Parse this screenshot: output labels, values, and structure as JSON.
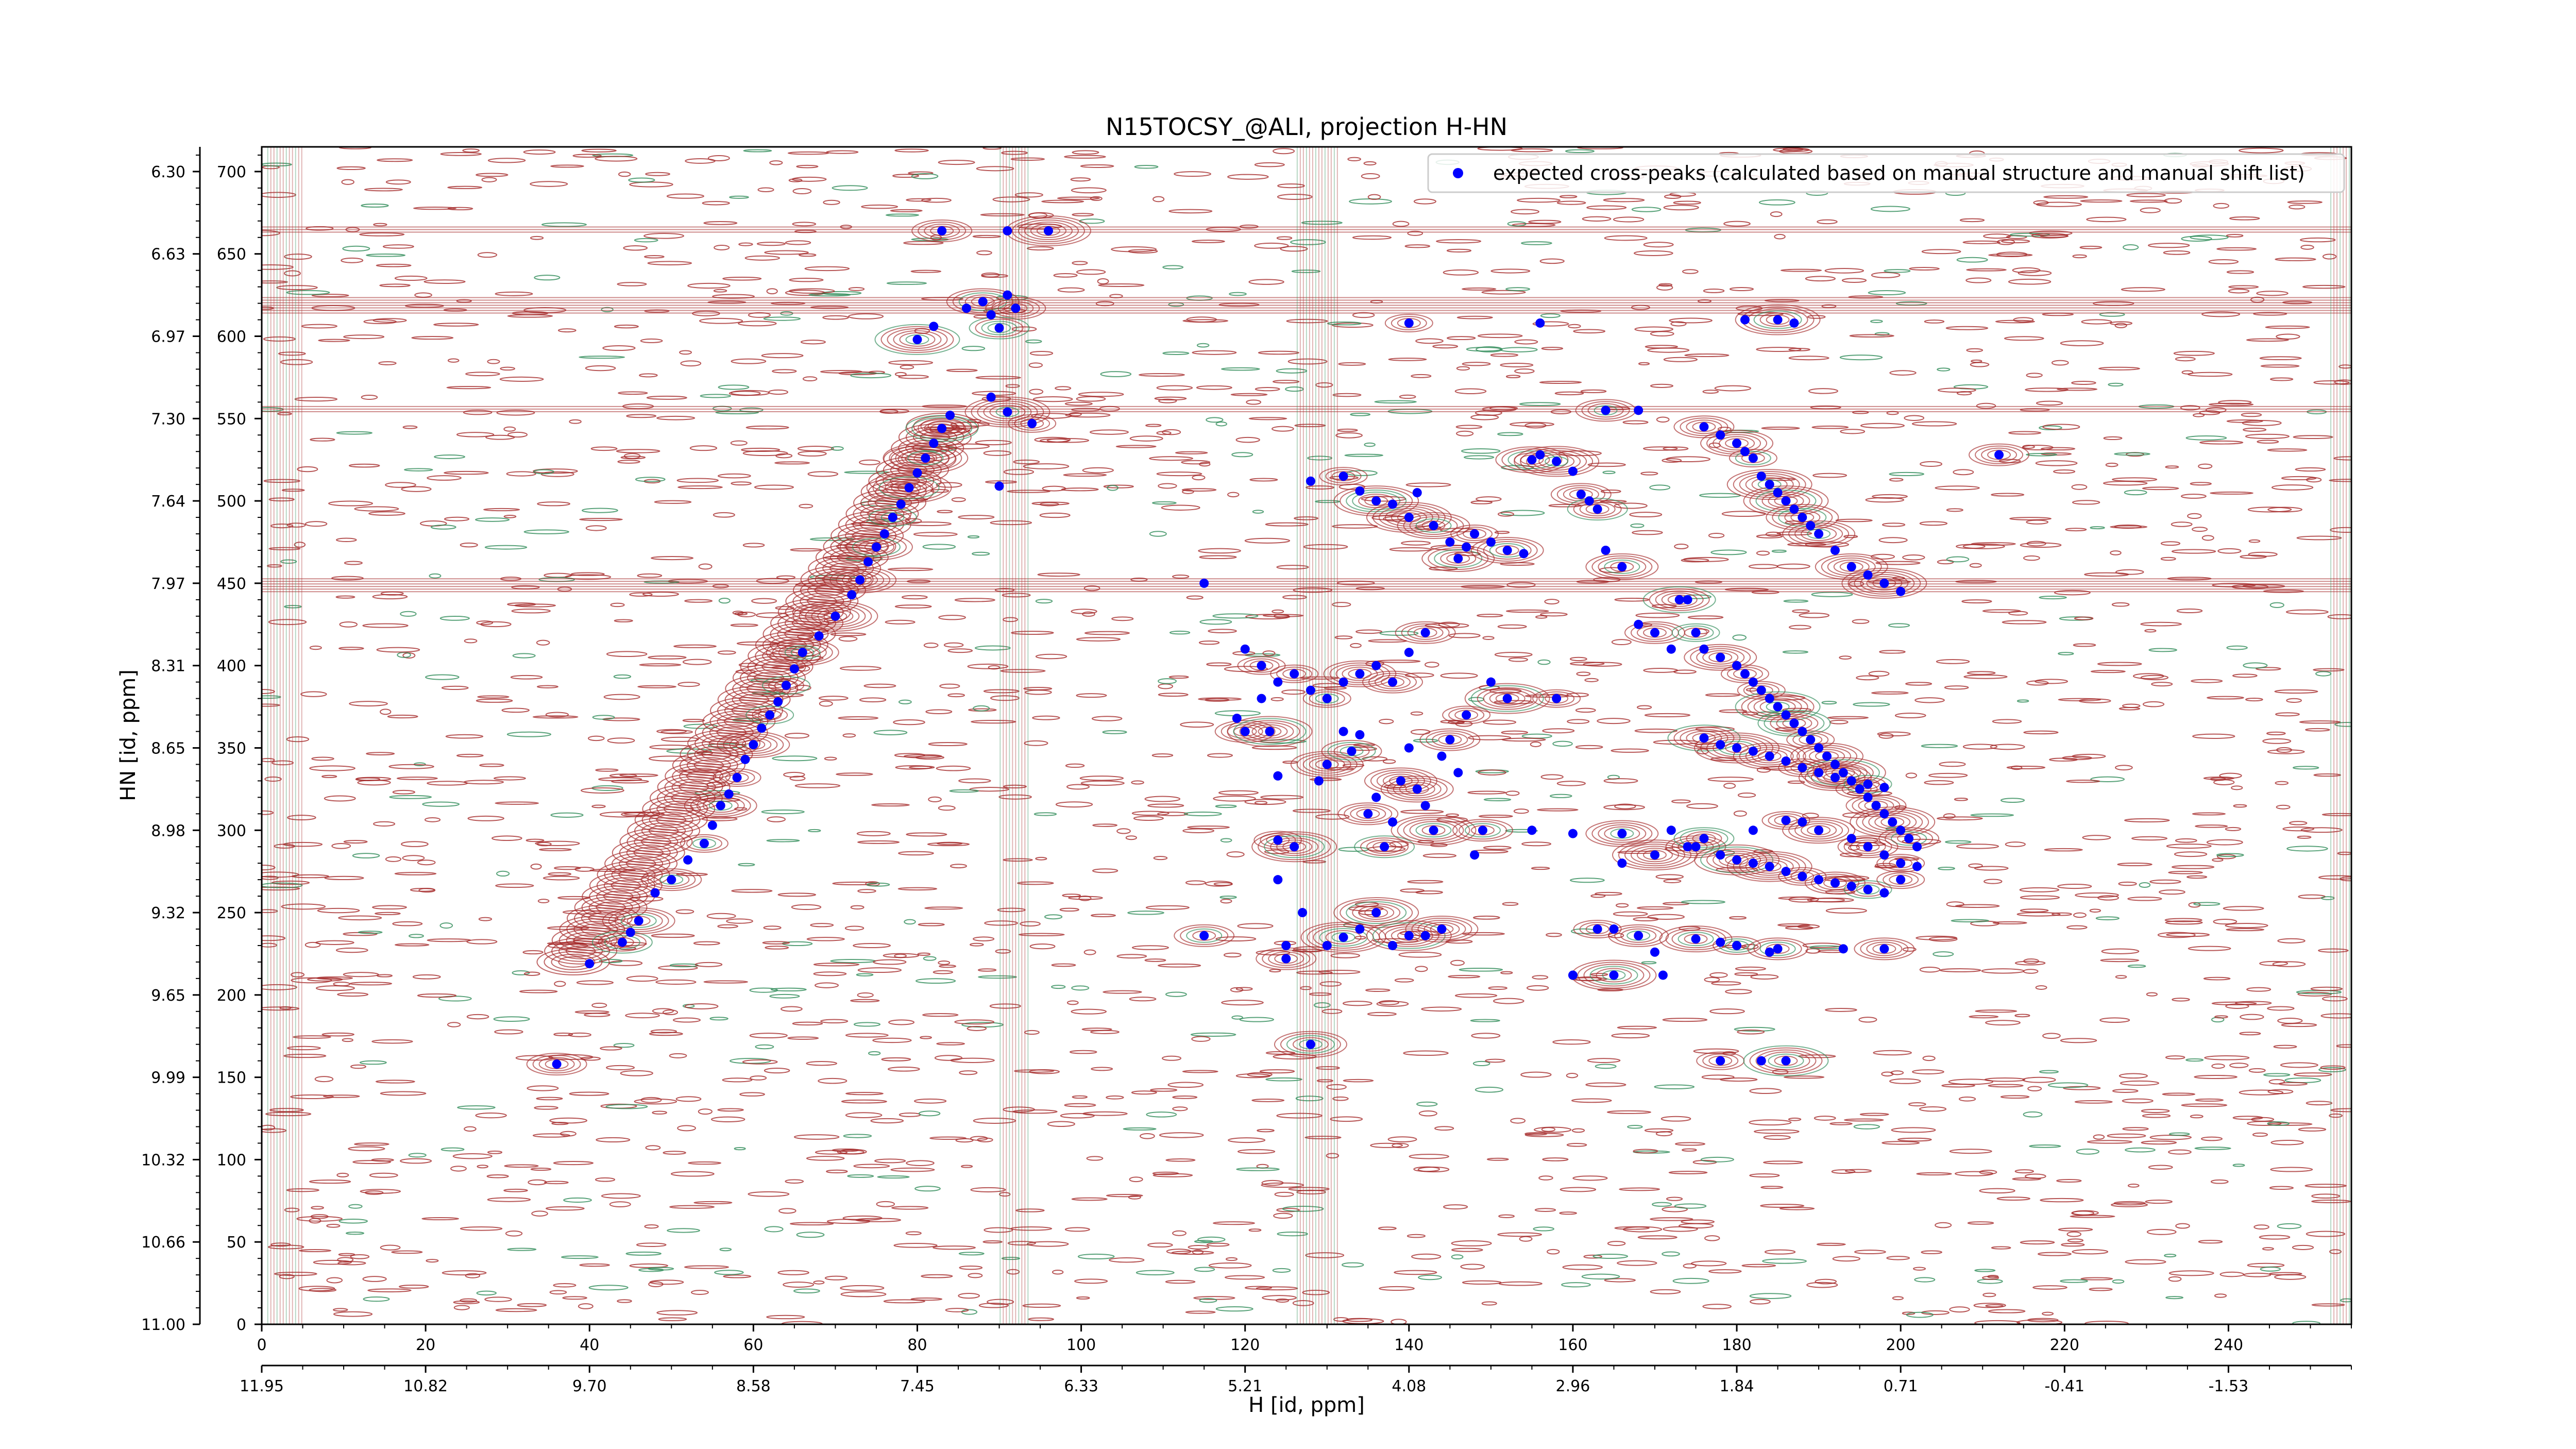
{
  "chart_data": {
    "type": "scatter",
    "title": "N15TOCSY_@ALI, projection H-HN",
    "xlabel": "H [id, ppm]",
    "ylabel": "HN [id, ppm]",
    "xlim": [
      0,
      255
    ],
    "ylim": [
      0,
      715
    ],
    "x_ticks_top": [
      0,
      20,
      40,
      60,
      80,
      100,
      120,
      140,
      160,
      180,
      200,
      220,
      240
    ],
    "x_ticks_bottom": [
      "11.95",
      "10.82",
      "9.70",
      "8.58",
      "7.45",
      "6.33",
      "5.21",
      "4.08",
      "2.96",
      "1.84",
      "0.71",
      "-0.41",
      "-1.53"
    ],
    "y_ticks_left": [
      "11.00",
      "10.66",
      "10.32",
      "9.99",
      "9.65",
      "9.32",
      "8.98",
      "8.65",
      "8.31",
      "7.97",
      "7.64",
      "7.30",
      "6.97",
      "6.63",
      "6.30"
    ],
    "y_ticks_right": [
      0,
      50,
      100,
      150,
      200,
      250,
      300,
      350,
      400,
      450,
      500,
      550,
      600,
      650,
      700
    ],
    "legend": {
      "label": "expected cross-peaks (calculated based on manual structure and manual shift list)",
      "placement": "top-right",
      "marker_color": "#0000ff"
    },
    "colors": {
      "positive_contours": "#a52a2a",
      "negative_contours": "#2e8b57",
      "markers": "#0000ff"
    },
    "series": [
      {
        "name": "expected cross-peaks (calculated based on manual structure and manual shift list)",
        "points": [
          [
            36,
            158
          ],
          [
            40,
            219
          ],
          [
            44,
            232
          ],
          [
            45,
            238
          ],
          [
            46,
            245
          ],
          [
            48,
            262
          ],
          [
            50,
            270
          ],
          [
            52,
            282
          ],
          [
            54,
            292
          ],
          [
            55,
            303
          ],
          [
            56,
            315
          ],
          [
            57,
            322
          ],
          [
            58,
            332
          ],
          [
            59,
            343
          ],
          [
            60,
            352
          ],
          [
            61,
            362
          ],
          [
            62,
            370
          ],
          [
            63,
            378
          ],
          [
            64,
            388
          ],
          [
            65,
            398
          ],
          [
            66,
            408
          ],
          [
            68,
            418
          ],
          [
            70,
            430
          ],
          [
            72,
            443
          ],
          [
            73,
            452
          ],
          [
            74,
            463
          ],
          [
            75,
            472
          ],
          [
            76,
            480
          ],
          [
            77,
            490
          ],
          [
            78,
            498
          ],
          [
            79,
            508
          ],
          [
            80,
            517
          ],
          [
            81,
            526
          ],
          [
            82,
            535
          ],
          [
            83,
            544
          ],
          [
            84,
            552
          ],
          [
            80,
            598
          ],
          [
            82,
            606
          ],
          [
            83,
            664
          ],
          [
            91,
            664
          ],
          [
            96,
            664
          ],
          [
            86,
            617
          ],
          [
            88,
            621
          ],
          [
            89,
            613
          ],
          [
            90,
            605
          ],
          [
            91,
            625
          ],
          [
            92,
            617
          ],
          [
            89,
            563
          ],
          [
            91,
            554
          ],
          [
            90,
            509
          ],
          [
            94,
            547
          ],
          [
            115,
            450
          ],
          [
            115,
            236
          ],
          [
            119,
            368
          ],
          [
            120,
            360
          ],
          [
            122,
            380
          ],
          [
            123,
            360
          ],
          [
            124,
            270
          ],
          [
            124,
            294
          ],
          [
            124,
            333
          ],
          [
            125,
            222
          ],
          [
            125,
            230
          ],
          [
            126,
            290
          ],
          [
            127,
            250
          ],
          [
            128,
            170
          ],
          [
            129,
            330
          ],
          [
            130,
            340
          ],
          [
            132,
            360
          ],
          [
            133,
            348
          ],
          [
            134,
            358
          ],
          [
            135,
            310
          ],
          [
            136,
            320
          ],
          [
            137,
            290
          ],
          [
            138,
            305
          ],
          [
            139,
            330
          ],
          [
            140,
            350
          ],
          [
            141,
            325
          ],
          [
            142,
            315
          ],
          [
            143,
            300
          ],
          [
            144,
            345
          ],
          [
            145,
            355
          ],
          [
            146,
            335
          ],
          [
            147,
            370
          ],
          [
            148,
            285
          ],
          [
            149,
            300
          ],
          [
            150,
            390
          ],
          [
            152,
            380
          ],
          [
            155,
            300
          ],
          [
            158,
            380
          ],
          [
            120,
            410
          ],
          [
            122,
            400
          ],
          [
            124,
            390
          ],
          [
            126,
            395
          ],
          [
            128,
            385
          ],
          [
            130,
            380
          ],
          [
            132,
            390
          ],
          [
            134,
            395
          ],
          [
            136,
            400
          ],
          [
            138,
            390
          ],
          [
            140,
            408
          ],
          [
            142,
            420
          ],
          [
            130,
            230
          ],
          [
            132,
            235
          ],
          [
            134,
            240
          ],
          [
            136,
            250
          ],
          [
            138,
            230
          ],
          [
            140,
            236
          ],
          [
            142,
            236
          ],
          [
            144,
            240
          ],
          [
            128,
            512
          ],
          [
            132,
            515
          ],
          [
            134,
            506
          ],
          [
            136,
            500
          ],
          [
            138,
            498
          ],
          [
            140,
            490
          ],
          [
            141,
            505
          ],
          [
            143,
            485
          ],
          [
            145,
            475
          ],
          [
            146,
            465
          ],
          [
            147,
            472
          ],
          [
            148,
            480
          ],
          [
            150,
            475
          ],
          [
            152,
            470
          ],
          [
            154,
            468
          ],
          [
            155,
            525
          ],
          [
            156,
            528
          ],
          [
            158,
            524
          ],
          [
            160,
            518
          ],
          [
            161,
            504
          ],
          [
            162,
            500
          ],
          [
            163,
            495
          ],
          [
            164,
            470
          ],
          [
            166,
            460
          ],
          [
            168,
            425
          ],
          [
            170,
            420
          ],
          [
            172,
            410
          ],
          [
            173,
            440
          ],
          [
            174,
            440
          ],
          [
            175,
            420
          ],
          [
            176,
            410
          ],
          [
            178,
            405
          ],
          [
            180,
            400
          ],
          [
            181,
            395
          ],
          [
            182,
            390
          ],
          [
            183,
            385
          ],
          [
            184,
            380
          ],
          [
            185,
            375
          ],
          [
            186,
            370
          ],
          [
            187,
            365
          ],
          [
            188,
            360
          ],
          [
            189,
            355
          ],
          [
            190,
            350
          ],
          [
            191,
            345
          ],
          [
            192,
            340
          ],
          [
            193,
            335
          ],
          [
            194,
            330
          ],
          [
            195,
            325
          ],
          [
            196,
            320
          ],
          [
            197,
            315
          ],
          [
            198,
            310
          ],
          [
            199,
            305
          ],
          [
            200,
            300
          ],
          [
            201,
            295
          ],
          [
            202,
            290
          ],
          [
            140,
            608
          ],
          [
            156,
            608
          ],
          [
            164,
            555
          ],
          [
            168,
            555
          ],
          [
            176,
            545
          ],
          [
            178,
            540
          ],
          [
            180,
            535
          ],
          [
            181,
            530
          ],
          [
            182,
            526
          ],
          [
            183,
            515
          ],
          [
            184,
            510
          ],
          [
            185,
            505
          ],
          [
            186,
            500
          ],
          [
            187,
            495
          ],
          [
            188,
            490
          ],
          [
            189,
            485
          ],
          [
            190,
            480
          ],
          [
            192,
            470
          ],
          [
            194,
            460
          ],
          [
            196,
            455
          ],
          [
            198,
            450
          ],
          [
            200,
            445
          ],
          [
            212,
            528
          ],
          [
            181,
            610
          ],
          [
            185,
            610
          ],
          [
            187,
            608
          ],
          [
            178,
            160
          ],
          [
            183,
            160
          ],
          [
            186,
            160
          ],
          [
            170,
            226
          ],
          [
            168,
            236
          ],
          [
            165,
            240
          ],
          [
            163,
            240
          ],
          [
            160,
            212
          ],
          [
            165,
            212
          ],
          [
            171,
            212
          ],
          [
            175,
            234
          ],
          [
            178,
            232
          ],
          [
            180,
            230
          ],
          [
            184,
            226
          ],
          [
            185,
            228
          ],
          [
            193,
            228
          ],
          [
            198,
            228
          ],
          [
            160,
            298
          ],
          [
            166,
            298
          ],
          [
            172,
            300
          ],
          [
            175,
            290
          ],
          [
            178,
            285
          ],
          [
            180,
            282
          ],
          [
            182,
            280
          ],
          [
            184,
            278
          ],
          [
            186,
            275
          ],
          [
            188,
            272
          ],
          [
            190,
            270
          ],
          [
            192,
            268
          ],
          [
            194,
            266
          ],
          [
            196,
            264
          ],
          [
            198,
            262
          ],
          [
            200,
            270
          ],
          [
            166,
            280
          ],
          [
            170,
            285
          ],
          [
            174,
            290
          ],
          [
            176,
            295
          ],
          [
            182,
            300
          ],
          [
            186,
            306
          ],
          [
            188,
            305
          ],
          [
            190,
            300
          ],
          [
            194,
            295
          ],
          [
            196,
            290
          ],
          [
            198,
            285
          ],
          [
            200,
            280
          ],
          [
            202,
            278
          ],
          [
            176,
            356
          ],
          [
            178,
            352
          ],
          [
            180,
            350
          ],
          [
            182,
            348
          ],
          [
            184,
            345
          ],
          [
            186,
            342
          ],
          [
            188,
            338
          ],
          [
            190,
            335
          ],
          [
            192,
            332
          ],
          [
            194,
            330
          ],
          [
            196,
            328
          ],
          [
            198,
            326
          ]
        ]
      }
    ]
  }
}
